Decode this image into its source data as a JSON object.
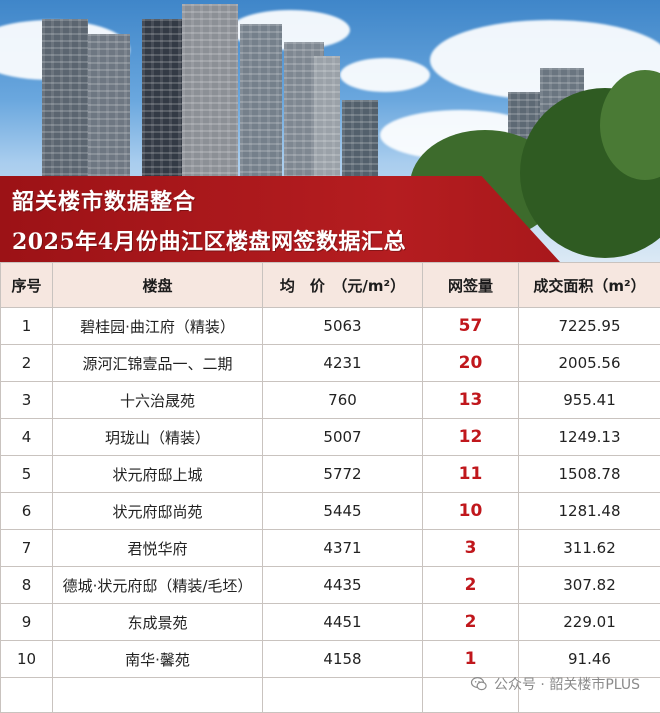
{
  "banner": {
    "line1": "韶关楼市数据整合",
    "line2": "2025年4月份曲江区楼盘网签数据汇总"
  },
  "table": {
    "headers": {
      "index": "序号",
      "project": "楼盘",
      "price": "均　价　（元/m²）",
      "signed": "网签量",
      "area": "成交面积（m²）"
    },
    "rows": [
      {
        "index": "1",
        "project": "碧桂园·曲江府（精装）",
        "price": "5063",
        "signed": "57",
        "area": "7225.95"
      },
      {
        "index": "2",
        "project": "源河汇锦壹品一、二期",
        "price": "4231",
        "signed": "20",
        "area": "2005.56"
      },
      {
        "index": "3",
        "project": "十六治晟苑",
        "price": "760",
        "signed": "13",
        "area": "955.41"
      },
      {
        "index": "4",
        "project": "玥珑山（精装）",
        "price": "5007",
        "signed": "12",
        "area": "1249.13"
      },
      {
        "index": "5",
        "project": "状元府邸上城",
        "price": "5772",
        "signed": "11",
        "area": "1508.78"
      },
      {
        "index": "6",
        "project": "状元府邸尚苑",
        "price": "5445",
        "signed": "10",
        "area": "1281.48"
      },
      {
        "index": "7",
        "project": "君悦华府",
        "price": "4371",
        "signed": "3",
        "area": "311.62"
      },
      {
        "index": "8",
        "project": "德城·状元府邸（精装/毛坯）",
        "price": "4435",
        "signed": "2",
        "area": "307.82"
      },
      {
        "index": "9",
        "project": "东成景苑",
        "price": "4451",
        "signed": "2",
        "area": "229.01"
      },
      {
        "index": "10",
        "project": "南华·馨苑",
        "price": "4158",
        "signed": "1",
        "area": "91.46"
      }
    ]
  },
  "watermark": {
    "text": "公众号 · 韶关楼市PLUS",
    "icon": "wechat-icon"
  },
  "colors": {
    "banner": "#b51d20",
    "header_bg": "#f6e7e0",
    "signed_text": "#c0171c"
  }
}
